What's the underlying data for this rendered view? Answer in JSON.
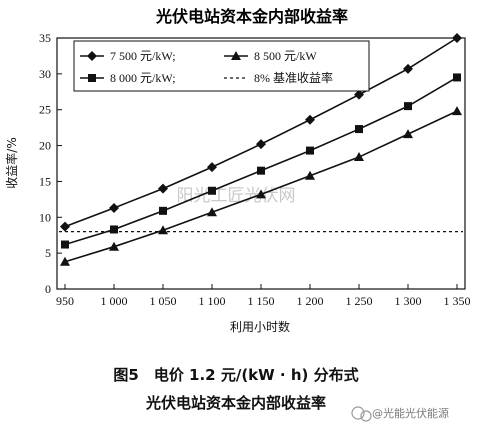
{
  "chart_data": {
    "type": "line",
    "title": "光伏电站资本金内部收益率",
    "xlabel": "利用小时数",
    "ylabel": "收益率/%",
    "x": [
      950,
      1000,
      1050,
      1100,
      1150,
      1200,
      1250,
      1300,
      1350
    ],
    "x_tick_labels": [
      "950",
      "1 000",
      "1 050",
      "1 100",
      "1 150",
      "1 200",
      "1 250",
      "1 300",
      "1 350"
    ],
    "y_ticks": [
      0,
      5,
      10,
      15,
      20,
      25,
      30,
      35
    ],
    "xlim": [
      950,
      1350
    ],
    "ylim": [
      0,
      35
    ],
    "grid": false,
    "legend_position": "top-left",
    "series": [
      {
        "name": "7 500 元/kW;",
        "marker": "diamond",
        "style": "solid",
        "values": [
          8.7,
          11.3,
          14.0,
          17.0,
          20.2,
          23.6,
          27.1,
          30.7,
          35.0
        ]
      },
      {
        "name": "8 500 元/kW",
        "marker": "triangle",
        "style": "solid",
        "values": [
          3.8,
          5.9,
          8.2,
          10.7,
          13.2,
          15.8,
          18.4,
          21.6,
          24.8
        ]
      },
      {
        "name": "8 000 元/kW;",
        "marker": "square",
        "style": "solid",
        "values": [
          6.2,
          8.3,
          10.9,
          13.7,
          16.5,
          19.3,
          22.3,
          25.5,
          29.5
        ]
      },
      {
        "name": "8% 基准收益率",
        "marker": "none",
        "style": "dashed",
        "values": [
          8.0,
          8.0,
          8.0,
          8.0,
          8.0,
          8.0,
          8.0,
          8.0,
          8.0
        ]
      }
    ]
  },
  "caption": {
    "line1": "图5　电价 1.2 元/(kW · h) 分布式",
    "line2": "光伏电站资本金内部收益率"
  },
  "watermark": "阳光工匠光伏网",
  "brand": "@光能光伏能源",
  "colors": {
    "line": "#111111",
    "watermark": "#c9c9c9"
  }
}
